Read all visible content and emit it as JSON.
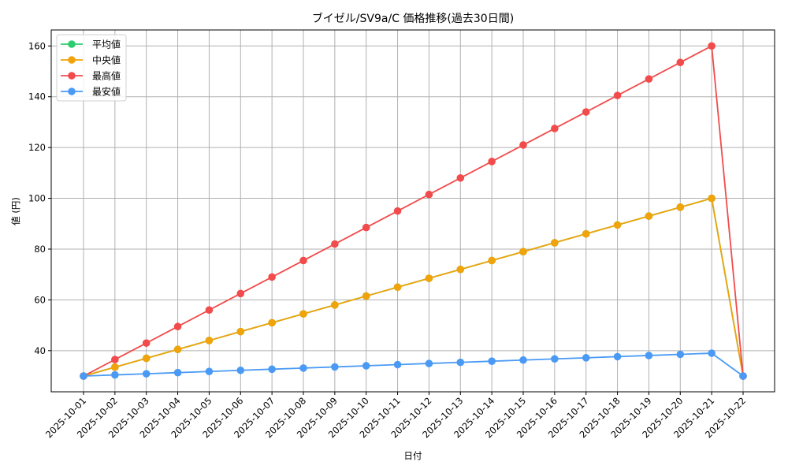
{
  "chart_data": {
    "type": "line",
    "title": "ブイゼル/SV9a/C 価格推移(過去30日間)",
    "xlabel": "日付",
    "ylabel": "値 (円)",
    "ylim": [
      23.8,
      166.3
    ],
    "yticks": [
      40,
      60,
      80,
      100,
      120,
      140,
      160
    ],
    "grid": true,
    "legend_position": "upper left",
    "categories": [
      "2025-10-01",
      "2025-10-02",
      "2025-10-03",
      "2025-10-04",
      "2025-10-05",
      "2025-10-06",
      "2025-10-07",
      "2025-10-08",
      "2025-10-09",
      "2025-10-10",
      "2025-10-11",
      "2025-10-12",
      "2025-10-13",
      "2025-10-14",
      "2025-10-15",
      "2025-10-16",
      "2025-10-17",
      "2025-10-18",
      "2025-10-19",
      "2025-10-20",
      "2025-10-21",
      "2025-10-22"
    ],
    "series": [
      {
        "name": "平均値",
        "color": "#2ecc71",
        "values": [
          30,
          33.5,
          37,
          40.5,
          44,
          47.5,
          51,
          54.5,
          58,
          61.5,
          65,
          68.5,
          72,
          75.5,
          79,
          82.5,
          86,
          89.5,
          93,
          96.5,
          100,
          30
        ]
      },
      {
        "name": "中央値",
        "color": "#f0a30a",
        "values": [
          30,
          33.5,
          37,
          40.5,
          44,
          47.5,
          51,
          54.5,
          58,
          61.5,
          65,
          68.5,
          72,
          75.5,
          79,
          82.5,
          86,
          89.5,
          93,
          96.5,
          100,
          30
        ]
      },
      {
        "name": "最高値",
        "color": "#f24b4b",
        "values": [
          30,
          36.5,
          43,
          49.5,
          56,
          62.5,
          69,
          75.5,
          82,
          88.5,
          95,
          101.5,
          108,
          114.5,
          121,
          127.5,
          134,
          140.5,
          147,
          153.5,
          160,
          30
        ]
      },
      {
        "name": "最安値",
        "color": "#4a9af5",
        "values": [
          30,
          30.45,
          30.9,
          31.35,
          31.8,
          32.25,
          32.7,
          33.15,
          33.6,
          34.05,
          34.5,
          34.95,
          35.4,
          35.85,
          36.3,
          36.75,
          37.2,
          37.65,
          38.1,
          38.55,
          39,
          30
        ]
      }
    ]
  }
}
